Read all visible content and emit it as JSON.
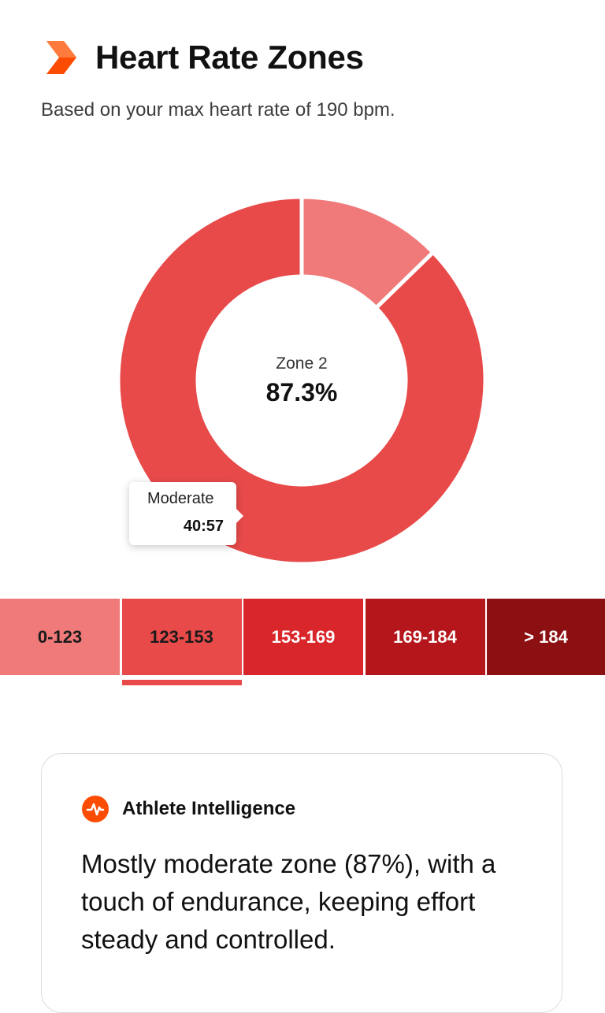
{
  "header": {
    "logo_icon": "orange-chevron-icon",
    "title": "Heart Rate Zones",
    "subtitle": "Based on your max heart rate of 190 bpm."
  },
  "chart_data": {
    "type": "pie",
    "style": "donut",
    "center_label": "Zone 2",
    "center_value": "87.3%",
    "slices": [
      {
        "zone": "Zone 1",
        "value": 12.7,
        "color": "#f07a7a"
      },
      {
        "zone": "Zone 2",
        "value": 87.3,
        "color": "#e84a4a"
      }
    ],
    "tooltip": {
      "label": "Moderate",
      "value": "40:57"
    }
  },
  "zones": [
    {
      "label": "0-123",
      "color": "#f07a7a",
      "text_color": "#1a1a1a",
      "selected": false
    },
    {
      "label": "123-153",
      "color": "#e84a4a",
      "text_color": "#1a1a1a",
      "selected": true
    },
    {
      "label": "153-169",
      "color": "#d9262a",
      "text_color": "#ffffff",
      "selected": false
    },
    {
      "label": "169-184",
      "color": "#b5161b",
      "text_color": "#ffffff",
      "selected": false
    },
    {
      "label": "> 184",
      "color": "#8c0f11",
      "text_color": "#ffffff",
      "selected": false
    }
  ],
  "insight": {
    "icon": "athlete-intelligence-icon",
    "title": "Athlete Intelligence",
    "text": "Mostly moderate zone (87%), with a touch of endurance, keeping effort steady and controlled."
  },
  "colors": {
    "accent": "#fc4c02"
  }
}
